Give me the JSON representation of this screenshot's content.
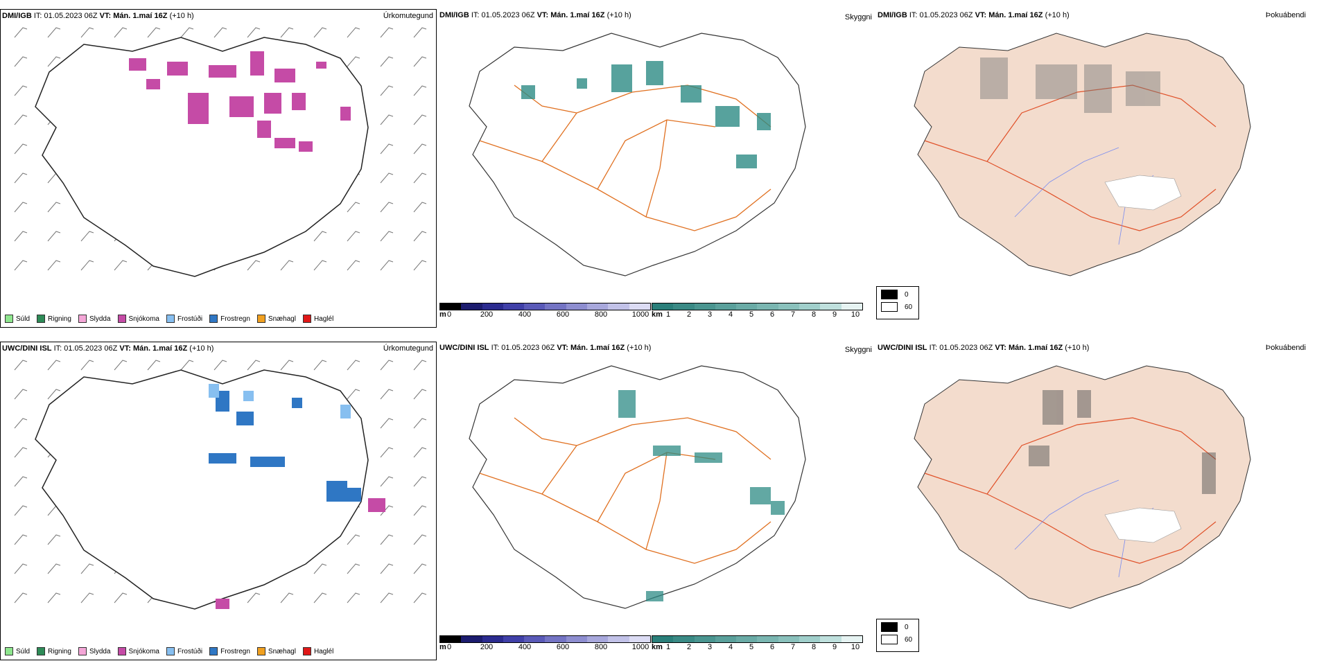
{
  "rows": [
    {
      "model": "DMI/IGB",
      "it_label": "IT:",
      "it_value": "01.05.2023 06Z",
      "vt_label": "VT:",
      "vt_value": "Mán. 1.maí 16Z",
      "lead": "(+10 h)",
      "precip_title": "Úrkomutegund",
      "vis_title": "Skyggni",
      "fog_title": "Þokuábendi"
    },
    {
      "model": "UWC/DINI ISL",
      "it_label": "IT:",
      "it_value": "01.05.2023 06Z",
      "vt_label": "VT:",
      "vt_value": "Mán. 1.maí 16Z",
      "lead": "(+10 h)",
      "precip_title": "Úrkomutegund",
      "vis_title": "Skyggni",
      "fog_title": "Þokuábendi"
    }
  ],
  "precip_legend": [
    {
      "label": "Súld",
      "color": "#8ee68e"
    },
    {
      "label": "Rigning",
      "color": "#2e8b57"
    },
    {
      "label": "Slydda",
      "color": "#f4a6d7"
    },
    {
      "label": "Snjókoma",
      "color": "#c54ba6"
    },
    {
      "label": "Frostúði",
      "color": "#87bff0"
    },
    {
      "label": "Frostregn",
      "color": "#2f77c4"
    },
    {
      "label": "Snæhagl",
      "color": "#f0a020"
    },
    {
      "label": "Haglél",
      "color": "#e01818"
    }
  ],
  "vis_legend": {
    "ceiling_unit": "m",
    "ceiling_ticks": [
      "0",
      "200",
      "400",
      "600",
      "800",
      "1000"
    ],
    "ceiling_colors": [
      "#000000",
      "#1c1c6e",
      "#2b2b8f",
      "#4040a8",
      "#5a5ab8",
      "#7474c4",
      "#8e8ed0",
      "#a8a8dc",
      "#c2c2e8",
      "#dcdcf4"
    ],
    "vis_unit": "km",
    "vis_ticks": [
      "1",
      "2",
      "3",
      "4",
      "5",
      "6",
      "7",
      "8",
      "9",
      "10"
    ],
    "vis_colors": [
      "#2a7f7a",
      "#3a8a85",
      "#4a9590",
      "#5aa09b",
      "#6aaba6",
      "#7ab6b1",
      "#8ac1bc",
      "#a0cfcb",
      "#bfe0dd",
      "#e6f3f2"
    ]
  },
  "fog_legend": {
    "values": [
      "0",
      "60"
    ],
    "colors": [
      "#000000",
      "#ffffff"
    ]
  },
  "colors": {
    "land_fog": "#f3dccd",
    "roads": "#e07020",
    "rivers": "#7a8cf0",
    "snow_cells": "#c54ba6",
    "freeze_cells": "#2f77c4",
    "vis_cells": "#2e8b85"
  }
}
